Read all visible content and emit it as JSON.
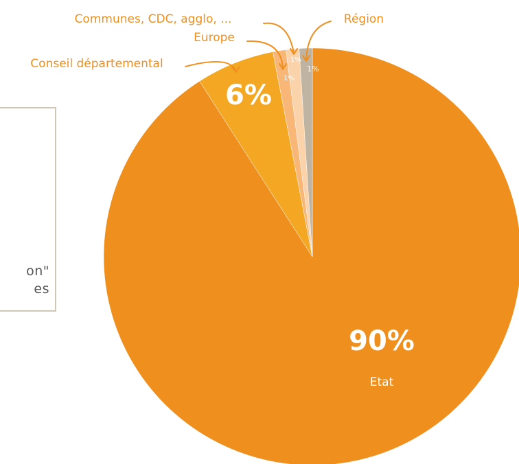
{
  "side_box": {
    "line1": "on\"",
    "line2": "es"
  },
  "chart_data": {
    "type": "pie",
    "title": "",
    "start_angle_deg": 0,
    "direction": "clockwise",
    "slices": [
      {
        "label": "Etat",
        "value": 90,
        "value_label": "90%",
        "color": "#ef8f1e"
      },
      {
        "label": "Conseil départemental",
        "value": 6,
        "value_label": "6%",
        "color": "#f4a723"
      },
      {
        "label": "Europe",
        "value": 1,
        "value_label": "1%",
        "color": "#f8b776"
      },
      {
        "label": "Communes, CDC, agglo, ...",
        "value": 1,
        "value_label": "1%",
        "color": "#fbd3aa"
      },
      {
        "label": "Région",
        "value": 1,
        "value_label": "1%",
        "color": "#bfb3a1"
      }
    ],
    "label_color": "#ef8f1e"
  }
}
